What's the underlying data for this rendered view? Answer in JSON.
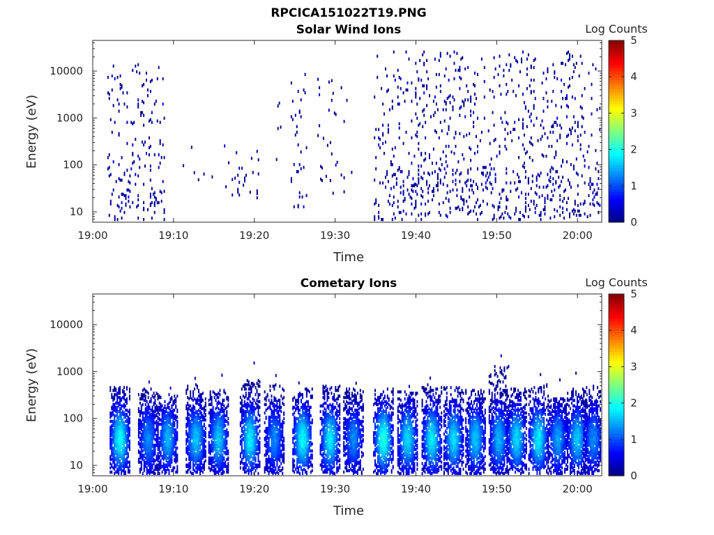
{
  "figure_title": "RPCICA151022T19.PNG",
  "colormap": [
    "#00007f",
    "#0000ff",
    "#007fff",
    "#00ffff",
    "#7fff7f",
    "#ffff00",
    "#ff7f00",
    "#ff0000",
    "#7f0000"
  ],
  "chart_data": [
    {
      "type": "heatmap",
      "title": "Solar Wind Ions",
      "xlabel": "Time",
      "ylabel": "Energy (eV)",
      "x_ticks": [
        "19:00",
        "19:10",
        "19:20",
        "19:30",
        "19:40",
        "19:50",
        "20:00"
      ],
      "x_tick_minutes": [
        0,
        10,
        20,
        30,
        40,
        50,
        60
      ],
      "xlim_minutes": [
        0,
        63
      ],
      "y_scale": "log",
      "y_ticks": [
        "10",
        "100",
        "1000",
        "10000"
      ],
      "y_tick_values": [
        10,
        100,
        1000,
        10000
      ],
      "ylim": [
        6,
        45000
      ],
      "colorbar": {
        "label": "Log Counts",
        "ticks": [
          "0",
          "1",
          "2",
          "3",
          "4",
          "5"
        ],
        "range": [
          0,
          5
        ]
      },
      "typical_log_counts": 0.2,
      "activity_intervals_minutes": [
        {
          "start": 1.8,
          "end": 8.8,
          "energy_min": 6,
          "energy_max": 16000,
          "density": 0.5
        },
        {
          "start": 10.8,
          "end": 16.8,
          "energy_min": 30,
          "energy_max": 300,
          "density": 0.06
        },
        {
          "start": 17.2,
          "end": 20.5,
          "energy_min": 20,
          "energy_max": 300,
          "density": 0.25
        },
        {
          "start": 22.5,
          "end": 24.2,
          "energy_min": 25,
          "energy_max": 2500,
          "density": 0.08
        },
        {
          "start": 24.5,
          "end": 26.5,
          "energy_min": 12,
          "energy_max": 10000,
          "density": 0.35
        },
        {
          "start": 27.8,
          "end": 31.5,
          "energy_min": 25,
          "energy_max": 8000,
          "density": 0.2
        },
        {
          "start": 31.8,
          "end": 34.5,
          "energy_min": 40,
          "energy_max": 1000,
          "density": 0.06
        },
        {
          "start": 34.8,
          "end": 63.0,
          "energy_min": 6,
          "energy_max": 28000,
          "density": 0.5
        }
      ]
    },
    {
      "type": "heatmap",
      "title": "Cometary Ions",
      "xlabel": "Time",
      "ylabel": "Energy (eV)",
      "x_ticks": [
        "19:00",
        "19:10",
        "19:20",
        "19:30",
        "19:40",
        "19:50",
        "20:00"
      ],
      "x_tick_minutes": [
        0,
        10,
        20,
        30,
        40,
        50,
        60
      ],
      "xlim_minutes": [
        0,
        63
      ],
      "y_scale": "log",
      "y_ticks": [
        "10",
        "100",
        "1000",
        "10000"
      ],
      "y_tick_values": [
        10,
        100,
        1000,
        10000
      ],
      "ylim": [
        6,
        45000
      ],
      "colorbar": {
        "label": "Log Counts",
        "ticks": [
          "0",
          "1",
          "2",
          "3",
          "4",
          "5"
        ],
        "range": [
          0,
          5
        ]
      },
      "peak_energy_ev": 40,
      "burst_centers_minutes": [
        3.3,
        6.8,
        9.2,
        12.7,
        15.5,
        19.4,
        22.4,
        25.9,
        29.3,
        32.2,
        35.9,
        38.9,
        41.9,
        44.6,
        47.3,
        50.2,
        52.4,
        55.1,
        57.5,
        59.9,
        61.9
      ],
      "burst_peak_log_counts": [
        1.9,
        1.3,
        1.5,
        1.6,
        1.6,
        1.8,
        1.3,
        1.9,
        1.8,
        1.3,
        2.0,
        1.7,
        1.8,
        1.7,
        1.6,
        1.5,
        1.7,
        1.8,
        1.4,
        1.6,
        1.3
      ],
      "burst_max_energy_ev": [
        550,
        480,
        350,
        600,
        450,
        700,
        600,
        480,
        550,
        480,
        480,
        400,
        600,
        500,
        450,
        1400,
        480,
        600,
        300,
        480,
        550
      ]
    }
  ]
}
